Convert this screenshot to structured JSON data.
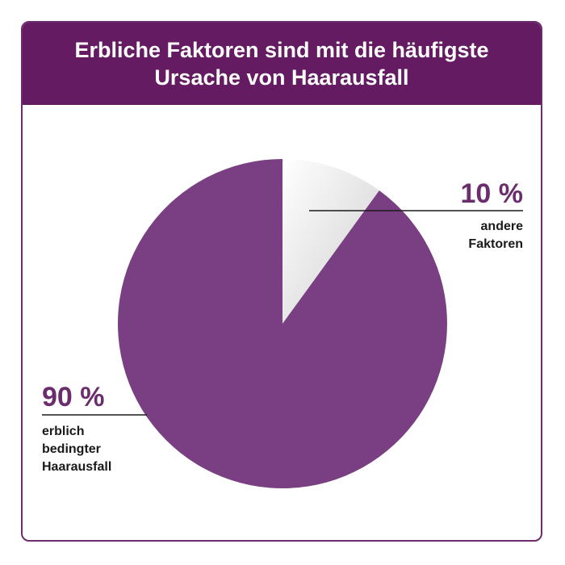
{
  "header": {
    "title_line1": "Erbliche Faktoren sind mit die häufigste",
    "title_line2": "Ursache von Haarausfall"
  },
  "colors": {
    "header_bg": "#641b62",
    "main_slice": "#7a3f82",
    "minor_slice_light": "#ffffff",
    "minor_slice_dark": "#d2d2d2",
    "accent_text": "#6b2d6e"
  },
  "chart_data": {
    "type": "pie",
    "title": "Erbliche Faktoren sind mit die häufigste Ursache von Haarausfall",
    "slices": [
      {
        "label_pct": "10 %",
        "value": 10,
        "label_lines": [
          "andere",
          "Faktoren"
        ],
        "color": "minor"
      },
      {
        "label_pct": "90 %",
        "value": 90,
        "label_lines": [
          "erblich",
          "bedingter",
          "Haarausfall"
        ],
        "color": "#7a3f82"
      }
    ]
  }
}
